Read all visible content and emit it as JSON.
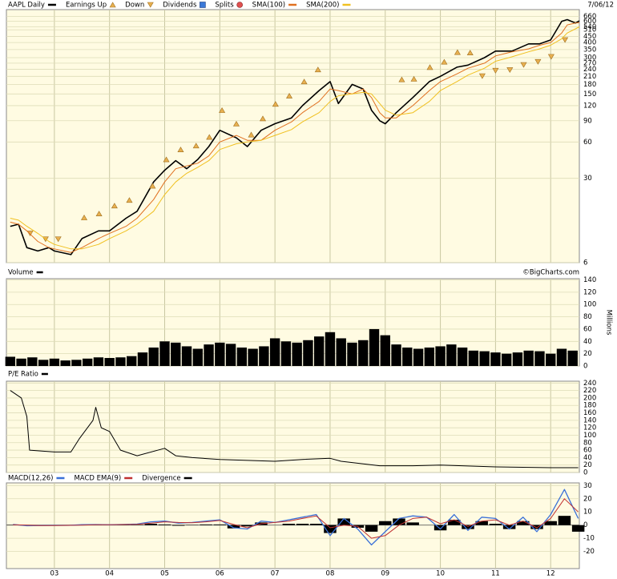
{
  "chart_data": [
    {
      "type": "line",
      "log": true,
      "date": "7/06/12",
      "grid": true,
      "x": [
        2002.2,
        2002.35,
        2002.5,
        2002.7,
        2002.9,
        2003.0,
        2003.3,
        2003.5,
        2003.8,
        2004.0,
        2004.3,
        2004.5,
        2004.8,
        2005.0,
        2005.2,
        2005.4,
        2005.6,
        2005.8,
        2006.0,
        2006.3,
        2006.5,
        2006.75,
        2007.0,
        2007.3,
        2007.5,
        2007.8,
        2008.0,
        2008.15,
        2008.4,
        2008.6,
        2008.75,
        2008.9,
        2009.0,
        2009.2,
        2009.5,
        2009.8,
        2010.0,
        2010.3,
        2010.5,
        2010.8,
        2011.0,
        2011.3,
        2011.6,
        2011.8,
        2012.0,
        2012.2,
        2012.3,
        2012.45,
        2012.52
      ],
      "ylim": [
        6,
        750
      ],
      "yticks": [
        6,
        30,
        60,
        90,
        120,
        150,
        180,
        210,
        240,
        270,
        300,
        350,
        400,
        450,
        510,
        540,
        600,
        660
      ],
      "series": [
        {
          "name": "AAPL Daily",
          "type": "line",
          "color": "#000000",
          "width": 1.6,
          "values": [
            12,
            12.5,
            8,
            7.5,
            8,
            7.5,
            7,
            9.5,
            11,
            11,
            14,
            16,
            28,
            35,
            42,
            36,
            43,
            55,
            75,
            65,
            55,
            75,
            85,
            95,
            120,
            160,
            190,
            125,
            180,
            165,
            110,
            90,
            85,
            105,
            140,
            190,
            210,
            250,
            260,
            300,
            340,
            340,
            390,
            390,
            420,
            600,
            620,
            580,
            605
          ]
        },
        {
          "name": "Earnings Up",
          "type": "scatter",
          "marker": "triangle-up",
          "color": "#e8b050",
          "x": [
            2003.54,
            2003.81,
            2004.09,
            2004.36,
            2004.78,
            2005.03,
            2005.29,
            2005.57,
            2005.81,
            2006.04,
            2006.3,
            2006.57,
            2006.78,
            2007.01,
            2007.26,
            2007.53,
            2007.78,
            2009.3,
            2009.52,
            2009.81,
            2010.07,
            2010.31,
            2010.54
          ],
          "values": [
            14.2,
            15.3,
            17.8,
            19.8,
            26,
            43,
            52,
            56,
            66,
            110,
            85,
            69,
            94,
            124,
            145,
            190,
            239,
            198,
            200,
            250,
            277,
            333,
            330
          ]
        },
        {
          "name": "Down",
          "type": "scatter",
          "marker": "triangle-down",
          "color": "#e8b050",
          "x": [
            2002.56,
            2002.84,
            2003.07,
            2010.76,
            2011.0,
            2011.26,
            2011.51,
            2011.77,
            2012.01,
            2012.26
          ],
          "values": [
            10.5,
            9.4,
            9.4,
            211,
            234,
            237,
            261,
            277,
            305,
            420
          ]
        },
        {
          "name": "Dividends",
          "type": "scatter",
          "marker": "square",
          "color": "#3a78d8",
          "x": [],
          "values": []
        },
        {
          "name": "Splits",
          "type": "scatter",
          "marker": "circle",
          "color": "#e05050",
          "x": [],
          "values": []
        },
        {
          "name": "SMA(100)",
          "type": "line",
          "color": "#e07020",
          "width": 1,
          "values": [
            13,
            12.5,
            11,
            9,
            8,
            7.8,
            7.3,
            8,
            9.5,
            10.5,
            12,
            14,
            20,
            28,
            36,
            38,
            40,
            46,
            60,
            68,
            62,
            62,
            75,
            88,
            105,
            130,
            165,
            160,
            150,
            165,
            140,
            105,
            95,
            95,
            120,
            160,
            190,
            220,
            245,
            270,
            310,
            335,
            355,
            380,
            400,
            480,
            560,
            580,
            585
          ]
        },
        {
          "name": "SMA(200)",
          "type": "line",
          "color": "#f0c020",
          "width": 1,
          "values": [
            14,
            13.5,
            12,
            10.5,
            9,
            8.5,
            7.8,
            7.8,
            8.5,
            9.5,
            11,
            12.5,
            16,
            22,
            28,
            33,
            37,
            42,
            52,
            58,
            60,
            62,
            68,
            76,
            88,
            105,
            130,
            145,
            150,
            155,
            150,
            125,
            110,
            100,
            105,
            130,
            160,
            190,
            215,
            245,
            280,
            305,
            335,
            355,
            380,
            430,
            480,
            520,
            540
          ]
        }
      ]
    },
    {
      "type": "bar",
      "title": "Volume",
      "y_label": "Millions",
      "credit": "©BigCharts.com",
      "color": "#000000",
      "grid": true,
      "x": [
        2002.2,
        2002.4,
        2002.6,
        2002.8,
        2003.0,
        2003.2,
        2003.4,
        2003.6,
        2003.8,
        2004.0,
        2004.2,
        2004.4,
        2004.6,
        2004.8,
        2005.0,
        2005.2,
        2005.4,
        2005.6,
        2005.8,
        2006.0,
        2006.2,
        2006.4,
        2006.6,
        2006.8,
        2007.0,
        2007.2,
        2007.4,
        2007.6,
        2007.8,
        2008.0,
        2008.2,
        2008.4,
        2008.6,
        2008.8,
        2009.0,
        2009.2,
        2009.4,
        2009.6,
        2009.8,
        2010.0,
        2010.2,
        2010.4,
        2010.6,
        2010.8,
        2011.0,
        2011.2,
        2011.4,
        2011.6,
        2011.8,
        2012.0,
        2012.2,
        2012.4
      ],
      "values": [
        15,
        12,
        14,
        10,
        12,
        9,
        10,
        12,
        14,
        13,
        14,
        16,
        22,
        30,
        40,
        38,
        32,
        28,
        35,
        38,
        36,
        30,
        28,
        32,
        45,
        40,
        38,
        42,
        48,
        55,
        45,
        38,
        42,
        60,
        50,
        35,
        30,
        28,
        30,
        32,
        35,
        30,
        25,
        24,
        22,
        20,
        22,
        25,
        24,
        20,
        28,
        25
      ],
      "ylim": [
        0,
        142
      ],
      "yticks": [
        0,
        20,
        40,
        60,
        80,
        100,
        120,
        140
      ]
    },
    {
      "type": "line",
      "title": "P/E Ratio",
      "color": "#000000",
      "grid": true,
      "x": [
        2002.2,
        2002.4,
        2002.5,
        2002.55,
        2003.0,
        2003.3,
        2003.45,
        2003.7,
        2003.75,
        2003.85,
        2004.0,
        2004.2,
        2004.5,
        2005.0,
        2005.2,
        2005.5,
        2006.0,
        2007.0,
        2007.5,
        2008.0,
        2008.2,
        2008.9,
        2009.5,
        2010.0,
        2011.0,
        2011.5,
        2012.0,
        2012.5
      ],
      "values": [
        220,
        200,
        150,
        60,
        55,
        55,
        90,
        140,
        175,
        120,
        110,
        60,
        45,
        65,
        45,
        40,
        35,
        30,
        35,
        38,
        30,
        18,
        18,
        20,
        15,
        14,
        13,
        13
      ],
      "ylim": [
        0,
        245
      ],
      "yticks": [
        0,
        20,
        40,
        60,
        80,
        100,
        120,
        140,
        160,
        180,
        200,
        220,
        240
      ]
    },
    {
      "type": "line",
      "grid": true,
      "x": [
        2002.25,
        2002.5,
        2002.75,
        2003.0,
        2003.25,
        2003.5,
        2003.75,
        2004.0,
        2004.25,
        2004.5,
        2004.75,
        2005.0,
        2005.25,
        2005.5,
        2005.75,
        2006.0,
        2006.25,
        2006.5,
        2006.75,
        2007.0,
        2007.25,
        2007.5,
        2007.75,
        2008.0,
        2008.25,
        2008.5,
        2008.75,
        2009.0,
        2009.25,
        2009.5,
        2009.75,
        2010.0,
        2010.25,
        2010.5,
        2010.75,
        2011.0,
        2011.25,
        2011.5,
        2011.75,
        2012.0,
        2012.25,
        2012.5
      ],
      "ylim": [
        -33,
        32
      ],
      "yticks": [
        -20,
        -10,
        0,
        10,
        20,
        30
      ],
      "xlim": [
        2002.13,
        2012.52
      ],
      "xticks": [
        {
          "value": 2003,
          "label": "03"
        },
        {
          "value": 2004,
          "label": "04"
        },
        {
          "value": 2005,
          "label": "05"
        },
        {
          "value": 2006,
          "label": "06"
        },
        {
          "value": 2007,
          "label": "07"
        },
        {
          "value": 2008,
          "label": "08"
        },
        {
          "value": 2009,
          "label": "09"
        },
        {
          "value": 2010,
          "label": "10"
        },
        {
          "value": 2011,
          "label": "11"
        },
        {
          "value": 2012,
          "label": "12"
        }
      ],
      "series": [
        {
          "name": "MACD(12,26)",
          "type": "line",
          "color": "#3a70d8",
          "width": 1.3,
          "values": [
            0.5,
            -0.5,
            -0.3,
            -0.2,
            -0.2,
            0.3,
            0.4,
            0.2,
            0.5,
            0.8,
            2.5,
            3,
            1.5,
            2,
            3,
            4,
            -2,
            -3,
            3,
            2,
            4,
            6,
            8,
            -8,
            5,
            -3,
            -15,
            -5,
            5,
            7,
            6,
            -3,
            8,
            -4,
            6,
            5,
            -3,
            6,
            -5,
            8,
            27,
            5
          ]
        },
        {
          "name": "MACD EMA(9)",
          "type": "line",
          "color": "#c03030",
          "width": 1,
          "values": [
            0.3,
            0,
            -0.3,
            -0.3,
            -0.2,
            0,
            0.3,
            0.3,
            0.4,
            0.6,
            1.5,
            2.5,
            2,
            1.8,
            2.5,
            3.5,
            0.5,
            -2,
            1,
            2,
            3,
            5,
            7,
            -2,
            0,
            -1,
            -10,
            -8,
            0,
            5,
            6,
            1,
            4,
            -1,
            3,
            4,
            0,
            3,
            -2,
            5,
            20,
            10
          ]
        },
        {
          "name": "Divergence",
          "type": "bar",
          "color": "#000000",
          "values": [
            0.2,
            -0.5,
            0,
            0.1,
            0,
            0.3,
            0.1,
            -0.1,
            0.1,
            0.2,
            1,
            0.5,
            -0.5,
            0.2,
            0.5,
            0.5,
            -2.5,
            -1,
            2,
            0,
            1,
            1,
            1,
            -6,
            5,
            -2,
            -5,
            3,
            5,
            2,
            0,
            -4,
            4,
            -3,
            3,
            1,
            -3,
            3,
            -3,
            3,
            7,
            -5
          ]
        }
      ]
    }
  ]
}
